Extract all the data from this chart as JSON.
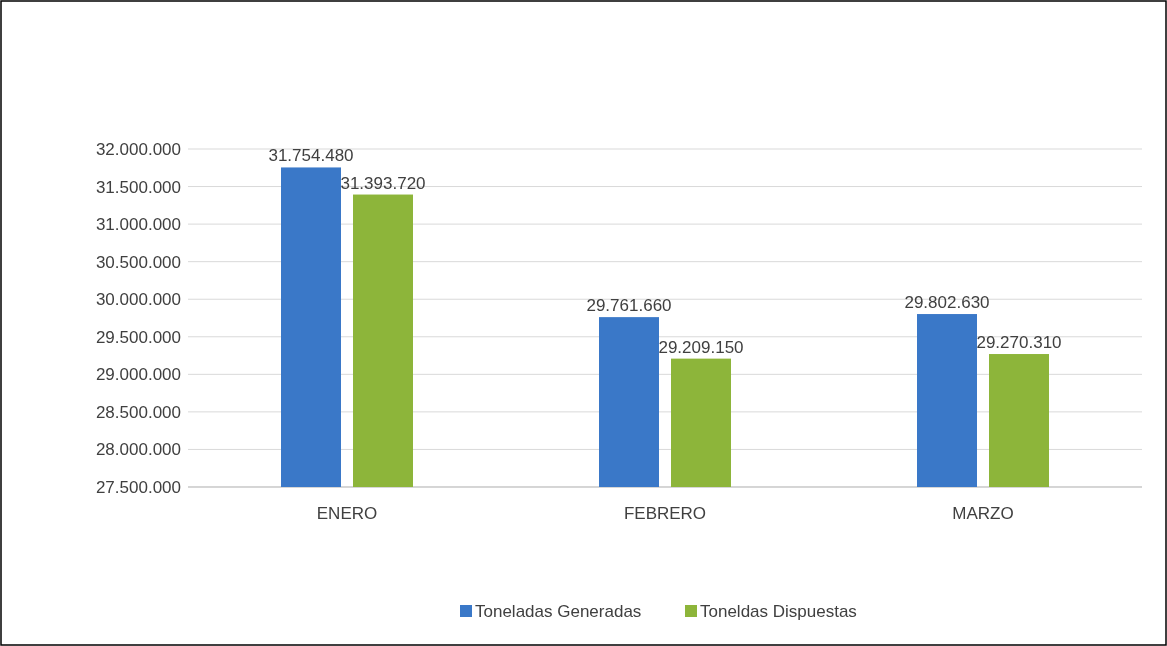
{
  "chart_data": {
    "type": "bar",
    "categories": [
      "ENERO",
      "FEBRERO",
      "MARZO"
    ],
    "series": [
      {
        "name": "Toneladas Generadas",
        "color": "#3a78c8",
        "values": [
          31754480,
          29761660,
          29802630
        ],
        "value_labels": [
          "31.754.480",
          "29.761.660",
          "29.802.630"
        ]
      },
      {
        "name": "Toneldas Dispuestas",
        "color": "#8db53a",
        "values": [
          31393720,
          29209150,
          29270310
        ],
        "value_labels": [
          "31.393.720",
          "29.209.150",
          "29.270.310"
        ]
      }
    ],
    "ylim": [
      27500000,
      32000000
    ],
    "yticks": [
      {
        "value": 27500000,
        "label": "27.500.000"
      },
      {
        "value": 28000000,
        "label": "28.000.000"
      },
      {
        "value": 28500000,
        "label": "28.500.000"
      },
      {
        "value": 29000000,
        "label": "29.000.000"
      },
      {
        "value": 29500000,
        "label": "29.500.000"
      },
      {
        "value": 30000000,
        "label": "30.000.000"
      },
      {
        "value": 30500000,
        "label": "30.500.000"
      },
      {
        "value": 31000000,
        "label": "31.000.000"
      },
      {
        "value": 31500000,
        "label": "31.500.000"
      },
      {
        "value": 32000000,
        "label": "32.000.000"
      }
    ],
    "grid": "y",
    "legend": "bottom"
  }
}
